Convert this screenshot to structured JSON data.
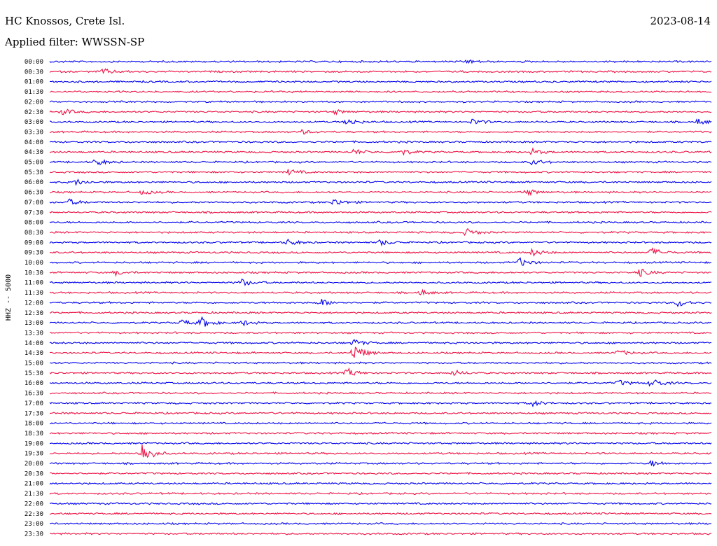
{
  "header": {
    "station": "HC Knossos, Crete Isl.",
    "date": "2023-08-14",
    "filter": "Applied filter: WWSSN-SP"
  },
  "colors": {
    "even_trace": "#0000ee",
    "odd_trace": "#ee1144",
    "background": "#ffffff",
    "text": "#000000"
  },
  "chart_data": {
    "type": "line",
    "title": "",
    "ylabel": "HHZ -- 5000",
    "grid": false,
    "legend": "none",
    "series_colors": [
      "#0000ee",
      "#ee1144"
    ],
    "time_labels": [
      "00:00",
      "00:30",
      "01:00",
      "01:30",
      "02:00",
      "02:30",
      "03:00",
      "03:30",
      "04:00",
      "04:30",
      "05:00",
      "05:30",
      "06:00",
      "06:30",
      "07:00",
      "07:30",
      "08:00",
      "08:30",
      "09:00",
      "09:30",
      "10:00",
      "10:30",
      "11:00",
      "11:30",
      "12:00",
      "12:30",
      "13:00",
      "13:30",
      "14:00",
      "14:30",
      "15:00",
      "15:30",
      "16:00",
      "16:30",
      "17:00",
      "17:30",
      "18:00",
      "18:30",
      "19:00",
      "19:30",
      "20:00",
      "20:30",
      "21:00",
      "21:30",
      "22:00",
      "22:30",
      "23:00",
      "23:30"
    ],
    "events": [
      {
        "row": 0,
        "at": 0.63,
        "amp": 3
      },
      {
        "row": 1,
        "at": 0.08,
        "amp": 4
      },
      {
        "row": 5,
        "at": 0.02,
        "amp": 4
      },
      {
        "row": 5,
        "at": 0.43,
        "amp": 3
      },
      {
        "row": 6,
        "at": 0.45,
        "amp": 5
      },
      {
        "row": 6,
        "at": 0.64,
        "amp": 4
      },
      {
        "row": 6,
        "at": 0.98,
        "amp": 4
      },
      {
        "row": 7,
        "at": 0.38,
        "amp": 3
      },
      {
        "row": 9,
        "at": 0.46,
        "amp": 4
      },
      {
        "row": 9,
        "at": 0.53,
        "amp": 5
      },
      {
        "row": 9,
        "at": 0.73,
        "amp": 4
      },
      {
        "row": 10,
        "at": 0.07,
        "amp": 5
      },
      {
        "row": 10,
        "at": 0.73,
        "amp": 4
      },
      {
        "row": 11,
        "at": 0.36,
        "amp": 4
      },
      {
        "row": 12,
        "at": 0.04,
        "amp": 4
      },
      {
        "row": 13,
        "at": 0.14,
        "amp": 3
      },
      {
        "row": 13,
        "at": 0.72,
        "amp": 5
      },
      {
        "row": 14,
        "at": 0.03,
        "amp": 4
      },
      {
        "row": 14,
        "at": 0.43,
        "amp": 5
      },
      {
        "row": 17,
        "at": 0.63,
        "amp": 5
      },
      {
        "row": 18,
        "at": 0.36,
        "amp": 4
      },
      {
        "row": 18,
        "at": 0.5,
        "amp": 4
      },
      {
        "row": 19,
        "at": 0.73,
        "amp": 5
      },
      {
        "row": 19,
        "at": 0.91,
        "amp": 6
      },
      {
        "row": 20,
        "at": 0.71,
        "amp": 6
      },
      {
        "row": 21,
        "at": 0.1,
        "amp": 3
      },
      {
        "row": 21,
        "at": 0.89,
        "amp": 6
      },
      {
        "row": 22,
        "at": 0.29,
        "amp": 5
      },
      {
        "row": 23,
        "at": 0.56,
        "amp": 4
      },
      {
        "row": 24,
        "at": 0.41,
        "amp": 5
      },
      {
        "row": 24,
        "at": 0.95,
        "amp": 6
      },
      {
        "row": 26,
        "at": 0.2,
        "amp": 4
      },
      {
        "row": 26,
        "at": 0.23,
        "amp": 7
      },
      {
        "row": 26,
        "at": 0.29,
        "amp": 4
      },
      {
        "row": 28,
        "at": 0.46,
        "amp": 5
      },
      {
        "row": 29,
        "at": 0.46,
        "amp": 12
      },
      {
        "row": 29,
        "at": 0.86,
        "amp": 4
      },
      {
        "row": 31,
        "at": 0.45,
        "amp": 6
      },
      {
        "row": 31,
        "at": 0.61,
        "amp": 4
      },
      {
        "row": 32,
        "at": 0.86,
        "amp": 4
      },
      {
        "row": 32,
        "at": 0.91,
        "amp": 7
      },
      {
        "row": 34,
        "at": 0.73,
        "amp": 4
      },
      {
        "row": 39,
        "at": 0.14,
        "amp": 15
      },
      {
        "row": 40,
        "at": 0.91,
        "amp": 4
      }
    ]
  }
}
